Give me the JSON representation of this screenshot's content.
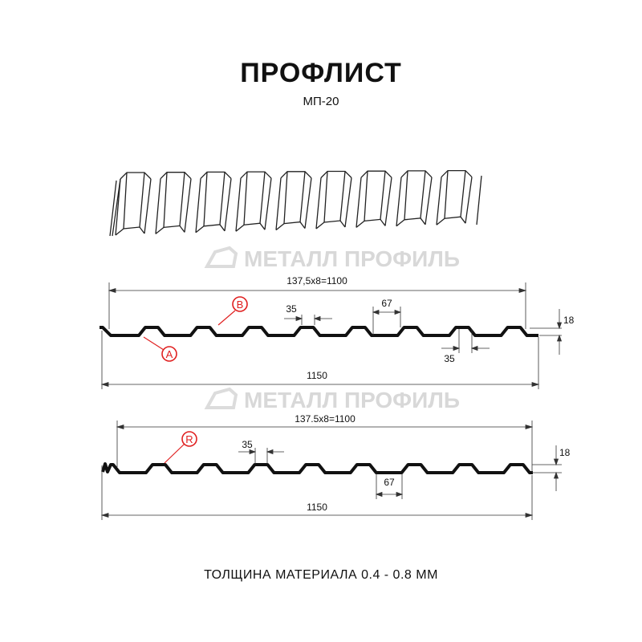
{
  "header": {
    "title": "ПРОФЛИСТ",
    "subtitle": "МП-20"
  },
  "watermark": {
    "text": "МЕТАЛЛ ПРОФИЛЬ"
  },
  "profile_1": {
    "span_label": "137,5x8=1100",
    "total_label": "1150",
    "rib_top_label": "35",
    "rib_bottom_label": "35",
    "pitch_label": "67",
    "height_label": "18",
    "marker_a": "A",
    "marker_b": "B"
  },
  "profile_2": {
    "span_label": "137.5x8=1100",
    "total_label": "1150",
    "rib_top_label": "35",
    "pitch_label": "67",
    "height_label": "18",
    "marker_r": "R"
  },
  "colors": {
    "line": "#111111",
    "marker": "#e02020",
    "watermark": "#d8d8d8"
  },
  "footer": {
    "thickness": "ТОЛЩИНА МАТЕРИАЛА 0.4 - 0.8 ММ"
  }
}
